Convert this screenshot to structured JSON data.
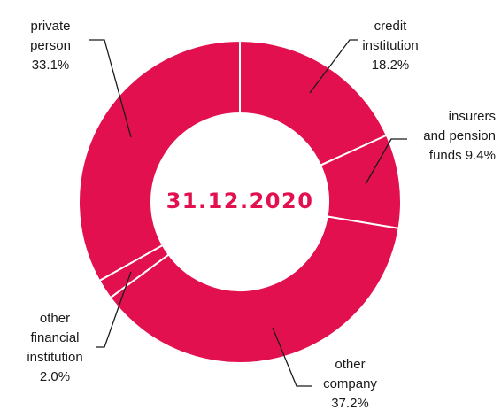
{
  "chart_data": {
    "type": "donut",
    "title": "31.12.2020",
    "categories": [
      "credit institution",
      "insurers and pension funds",
      "other company",
      "other financial institution",
      "private person"
    ],
    "values": [
      18.2,
      9.4,
      37.2,
      2.0,
      33.1
    ],
    "value_labels": [
      "18.2%",
      "9.4%",
      "37.2%",
      "2.0%",
      "33.1%"
    ],
    "color": "#e2104e"
  }
}
